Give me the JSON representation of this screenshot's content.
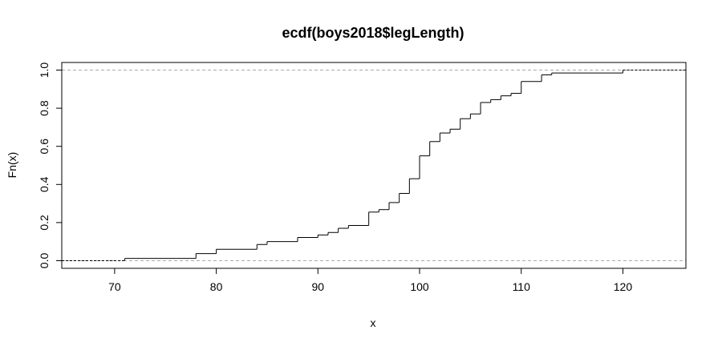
{
  "chart_data": {
    "type": "line",
    "subtype": "step",
    "title": "ecdf(boys2018$legLength)",
    "xlabel": "x",
    "ylabel": "Fn(x)",
    "xlim": [
      64.8,
      126.2
    ],
    "ylim": [
      -0.04,
      1.04
    ],
    "x_ticks": [
      70,
      80,
      90,
      100,
      110,
      120
    ],
    "y_ticks": [
      0.0,
      0.2,
      0.4,
      0.6,
      0.8,
      1.0
    ],
    "x_tick_labels": [
      "70",
      "80",
      "90",
      "100",
      "110",
      "120"
    ],
    "y_tick_labels": [
      "0.0",
      "0.2",
      "0.4",
      "0.6",
      "0.8",
      "1.0"
    ],
    "reference_lines": [
      0,
      1
    ],
    "grid": false,
    "legend": "none",
    "line_color": "#000000",
    "reference_color": "#aaaaaa",
    "series": [
      {
        "x": [
          71,
          78,
          80,
          84,
          85,
          88,
          90,
          91,
          92,
          93,
          95,
          96,
          97,
          98,
          99,
          100,
          101,
          102,
          103,
          104,
          105,
          106,
          107,
          108,
          109,
          110,
          112,
          113,
          120
        ],
        "y": [
          0.012,
          0.037,
          0.06,
          0.085,
          0.1,
          0.122,
          0.135,
          0.148,
          0.17,
          0.185,
          0.255,
          0.268,
          0.305,
          0.353,
          0.43,
          0.55,
          0.625,
          0.67,
          0.69,
          0.745,
          0.77,
          0.83,
          0.845,
          0.865,
          0.878,
          0.94,
          0.975,
          0.985,
          1.0
        ]
      }
    ]
  }
}
